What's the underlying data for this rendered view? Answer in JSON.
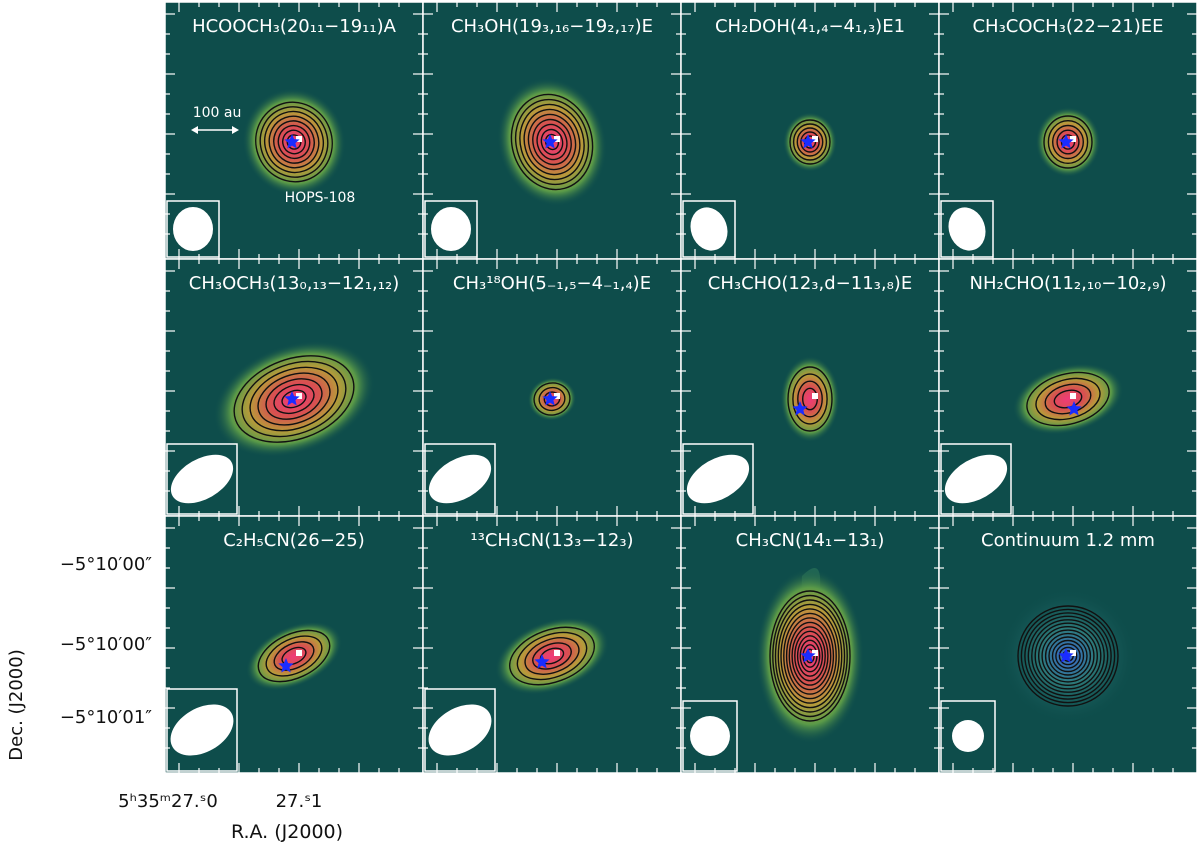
{
  "figure": {
    "background_color": "#0e4d4b",
    "frame_color": "#ffffff",
    "contour_color": "#111111",
    "star_color": "#1a2cff",
    "peak_marker_color": "#ffffff",
    "beam_color": "#ffffff",
    "panels": [
      {
        "title": "HCOOCH₃(20₁₁−19₁₁)A",
        "annotation_scale": "100 au",
        "annotation_source": "HOPS-108"
      },
      {
        "title": "CH₃OH(19₃,₁₆−19₂,₁₇)E"
      },
      {
        "title": "CH₂DOH(4₁,₄−4₁,₃)E1"
      },
      {
        "title": "CH₃COCH₃(22−21)EE"
      },
      {
        "title": "CH₃OCH₃(13₀,₁₃−12₁,₁₂)"
      },
      {
        "title": "CH₃¹⁸OH(5₋₁,₅−4₋₁,₄)E"
      },
      {
        "title": "CH₃CHO(12₃,d−11₃,₈)E"
      },
      {
        "title": "NH₂CHO(11₂,₁₀−10₂,₉)"
      },
      {
        "title": "C₂H₅CN(26−25)"
      },
      {
        "title": "¹³CH₃CN(13₃−12₃)"
      },
      {
        "title": "CH₃CN(14₁−13₁)"
      },
      {
        "title": "Continuum 1.2 mm"
      }
    ]
  },
  "axes": {
    "ylabel": "Dec. (J2000)",
    "xlabel": "R.A. (J2000)",
    "yticks": [
      "−5°10′00″",
      "−5°10′00″",
      "−5°10′01″"
    ],
    "xticks": [
      "5ʰ35ᵐ27.ˢ0",
      "27.ˢ1"
    ]
  }
}
